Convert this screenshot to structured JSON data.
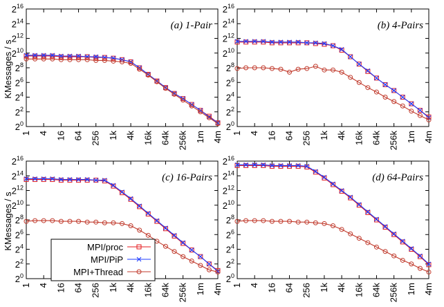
{
  "figure": {
    "ylabel": "KMessages / s",
    "legend": [
      "MPI/proc",
      "MPI/PiP",
      "MPI+Thread"
    ]
  },
  "colors": {
    "MPI/proc": "#e41a1c",
    "MPI/PiP": "#1f3cff",
    "MPI+Thread": "#c0392b",
    "axis": "#000000",
    "grid": "#999999"
  },
  "chart_data": [
    {
      "type": "line",
      "title": "(a) 1-Pair",
      "xlabel": "",
      "ylabel": "KMessages / s",
      "x_scale": "log2",
      "y_scale": "log2",
      "x": [
        1,
        2,
        4,
        8,
        16,
        32,
        64,
        128,
        256,
        512,
        1024,
        2048,
        4096,
        8192,
        16384,
        32768,
        65536,
        131072,
        262144,
        524288,
        1048576,
        2097152,
        4194304
      ],
      "xticks": [
        "1",
        "4",
        "16",
        "64",
        "256",
        "1k",
        "4k",
        "16k",
        "64k",
        "256k",
        "1m",
        "4m"
      ],
      "ylim_exp": [
        0,
        16
      ],
      "yticks_exp": [
        0,
        2,
        4,
        6,
        8,
        10,
        12,
        14,
        16
      ],
      "yticks_base": "2",
      "series_exp": [
        {
          "name": "MPI/proc",
          "values": [
            9.6,
            9.6,
            9.6,
            9.6,
            9.5,
            9.5,
            9.5,
            9.5,
            9.4,
            9.4,
            9.3,
            9.1,
            8.8,
            8.0,
            7.1,
            6.2,
            5.3,
            4.5,
            3.8,
            3.0,
            2.2,
            1.4,
            0.5
          ]
        },
        {
          "name": "MPI/PiP",
          "values": [
            9.7,
            9.7,
            9.7,
            9.7,
            9.6,
            9.6,
            9.6,
            9.5,
            9.5,
            9.4,
            9.3,
            9.1,
            8.8,
            8.0,
            7.1,
            6.2,
            5.3,
            4.5,
            3.8,
            3.0,
            2.2,
            1.3,
            0.5
          ]
        },
        {
          "name": "MPI+Thread",
          "values": [
            9.2,
            9.2,
            9.2,
            9.2,
            9.1,
            9.1,
            9.1,
            9.1,
            9.0,
            9.0,
            8.9,
            8.8,
            8.6,
            7.8,
            7.0,
            6.1,
            5.2,
            4.4,
            3.6,
            2.8,
            2.0,
            1.2,
            0.4
          ]
        }
      ]
    },
    {
      "type": "line",
      "title": "(b) 4-Pairs",
      "xlabel": "",
      "ylabel": "",
      "x_scale": "log2",
      "y_scale": "log2",
      "x": [
        1,
        2,
        4,
        8,
        16,
        32,
        64,
        128,
        256,
        512,
        1024,
        2048,
        4096,
        8192,
        16384,
        32768,
        65536,
        131072,
        262144,
        524288,
        1048576,
        2097152,
        4194304
      ],
      "xticks": [
        "1",
        "4",
        "16",
        "64",
        "256",
        "1k",
        "4k",
        "16k",
        "64k",
        "256k",
        "1m",
        "4m"
      ],
      "ylim_exp": [
        0,
        16
      ],
      "yticks_exp": [
        0,
        2,
        4,
        6,
        8,
        10,
        12,
        14,
        16
      ],
      "yticks_base": "2",
      "series_exp": [
        {
          "name": "MPI/proc",
          "values": [
            11.5,
            11.5,
            11.5,
            11.5,
            11.4,
            11.4,
            11.4,
            11.4,
            11.4,
            11.3,
            11.2,
            11.0,
            10.4,
            9.5,
            8.5,
            7.5,
            6.6,
            5.7,
            4.9,
            4.0,
            3.1,
            2.2,
            1.3
          ]
        },
        {
          "name": "MPI/PiP",
          "values": [
            11.6,
            11.6,
            11.6,
            11.6,
            11.5,
            11.5,
            11.5,
            11.5,
            11.4,
            11.4,
            11.3,
            11.0,
            10.5,
            9.5,
            8.5,
            7.6,
            6.6,
            5.7,
            4.9,
            4.0,
            3.1,
            2.2,
            1.2
          ]
        },
        {
          "name": "MPI+Thread",
          "values": [
            7.9,
            8.0,
            8.0,
            8.0,
            7.9,
            7.8,
            7.4,
            7.8,
            7.9,
            8.2,
            7.7,
            7.7,
            7.4,
            6.7,
            6.0,
            5.3,
            4.7,
            4.0,
            3.4,
            2.8,
            2.1,
            1.5,
            0.9
          ]
        }
      ]
    },
    {
      "type": "line",
      "title": "(c) 16-Pairs",
      "xlabel": "",
      "ylabel": "KMessages / s",
      "x_scale": "log2",
      "y_scale": "log2",
      "x": [
        1,
        2,
        4,
        8,
        16,
        32,
        64,
        128,
        256,
        512,
        1024,
        2048,
        4096,
        8192,
        16384,
        32768,
        65536,
        131072,
        262144,
        524288,
        1048576,
        2097152,
        4194304
      ],
      "xticks": [
        "1",
        "4",
        "16",
        "64",
        "256",
        "1k",
        "4k",
        "16k",
        "64k",
        "256k",
        "1m",
        "4m"
      ],
      "ylim_exp": [
        0,
        16
      ],
      "yticks_exp": [
        0,
        2,
        4,
        6,
        8,
        10,
        12,
        14,
        16
      ],
      "yticks_base": "2",
      "series_exp": [
        {
          "name": "MPI/proc",
          "values": [
            13.5,
            13.5,
            13.5,
            13.5,
            13.4,
            13.4,
            13.4,
            13.4,
            13.4,
            13.3,
            12.6,
            11.7,
            10.8,
            9.8,
            8.8,
            7.8,
            6.8,
            5.8,
            4.8,
            3.9,
            3.0,
            2.0,
            1.1
          ]
        },
        {
          "name": "MPI/PiP",
          "values": [
            13.6,
            13.6,
            13.6,
            13.6,
            13.5,
            13.5,
            13.5,
            13.5,
            13.4,
            13.4,
            12.7,
            11.8,
            10.9,
            9.9,
            8.9,
            7.9,
            6.9,
            5.9,
            4.9,
            3.9,
            3.0,
            2.0,
            1.0
          ]
        },
        {
          "name": "MPI+Thread",
          "values": [
            7.8,
            7.9,
            7.9,
            7.9,
            7.8,
            7.8,
            7.8,
            7.7,
            7.7,
            7.6,
            7.6,
            7.5,
            7.2,
            6.6,
            5.9,
            5.1,
            4.4,
            3.7,
            3.0,
            2.4,
            1.8,
            1.2,
            0.9
          ]
        }
      ]
    },
    {
      "type": "line",
      "title": "(d) 64-Pairs",
      "xlabel": "",
      "ylabel": "",
      "x_scale": "log2",
      "y_scale": "log2",
      "x": [
        1,
        2,
        4,
        8,
        16,
        32,
        64,
        128,
        256,
        512,
        1024,
        2048,
        4096,
        8192,
        16384,
        32768,
        65536,
        131072,
        262144,
        524288,
        1048576,
        2097152,
        4194304
      ],
      "xticks": [
        "1",
        "4",
        "16",
        "64",
        "256",
        "1k",
        "4k",
        "16k",
        "64k",
        "256k",
        "1m",
        "4m"
      ],
      "ylim_exp": [
        0,
        16
      ],
      "yticks_exp": [
        0,
        2,
        4,
        6,
        8,
        10,
        12,
        14,
        16
      ],
      "yticks_base": "2",
      "series_exp": [
        {
          "name": "MPI/proc",
          "values": [
            15.4,
            15.4,
            15.4,
            15.4,
            15.3,
            15.3,
            15.3,
            15.3,
            15.2,
            14.5,
            13.7,
            12.8,
            11.9,
            11.0,
            10.0,
            9.0,
            8.0,
            7.0,
            6.0,
            5.0,
            4.0,
            3.0,
            1.9
          ]
        },
        {
          "name": "MPI/PiP",
          "values": [
            15.5,
            15.5,
            15.5,
            15.5,
            15.4,
            15.4,
            15.4,
            15.4,
            15.3,
            14.6,
            13.8,
            12.9,
            12.0,
            11.1,
            10.1,
            9.1,
            8.1,
            7.1,
            6.1,
            5.1,
            4.1,
            3.1,
            2.0
          ]
        },
        {
          "name": "MPI+Thread",
          "values": [
            7.8,
            7.9,
            7.9,
            7.9,
            7.8,
            7.8,
            7.8,
            7.7,
            7.7,
            7.6,
            7.5,
            7.2,
            6.7,
            6.1,
            5.5,
            4.9,
            4.3,
            3.7,
            3.1,
            2.5,
            2.0,
            1.4,
            0.9
          ]
        }
      ]
    }
  ]
}
